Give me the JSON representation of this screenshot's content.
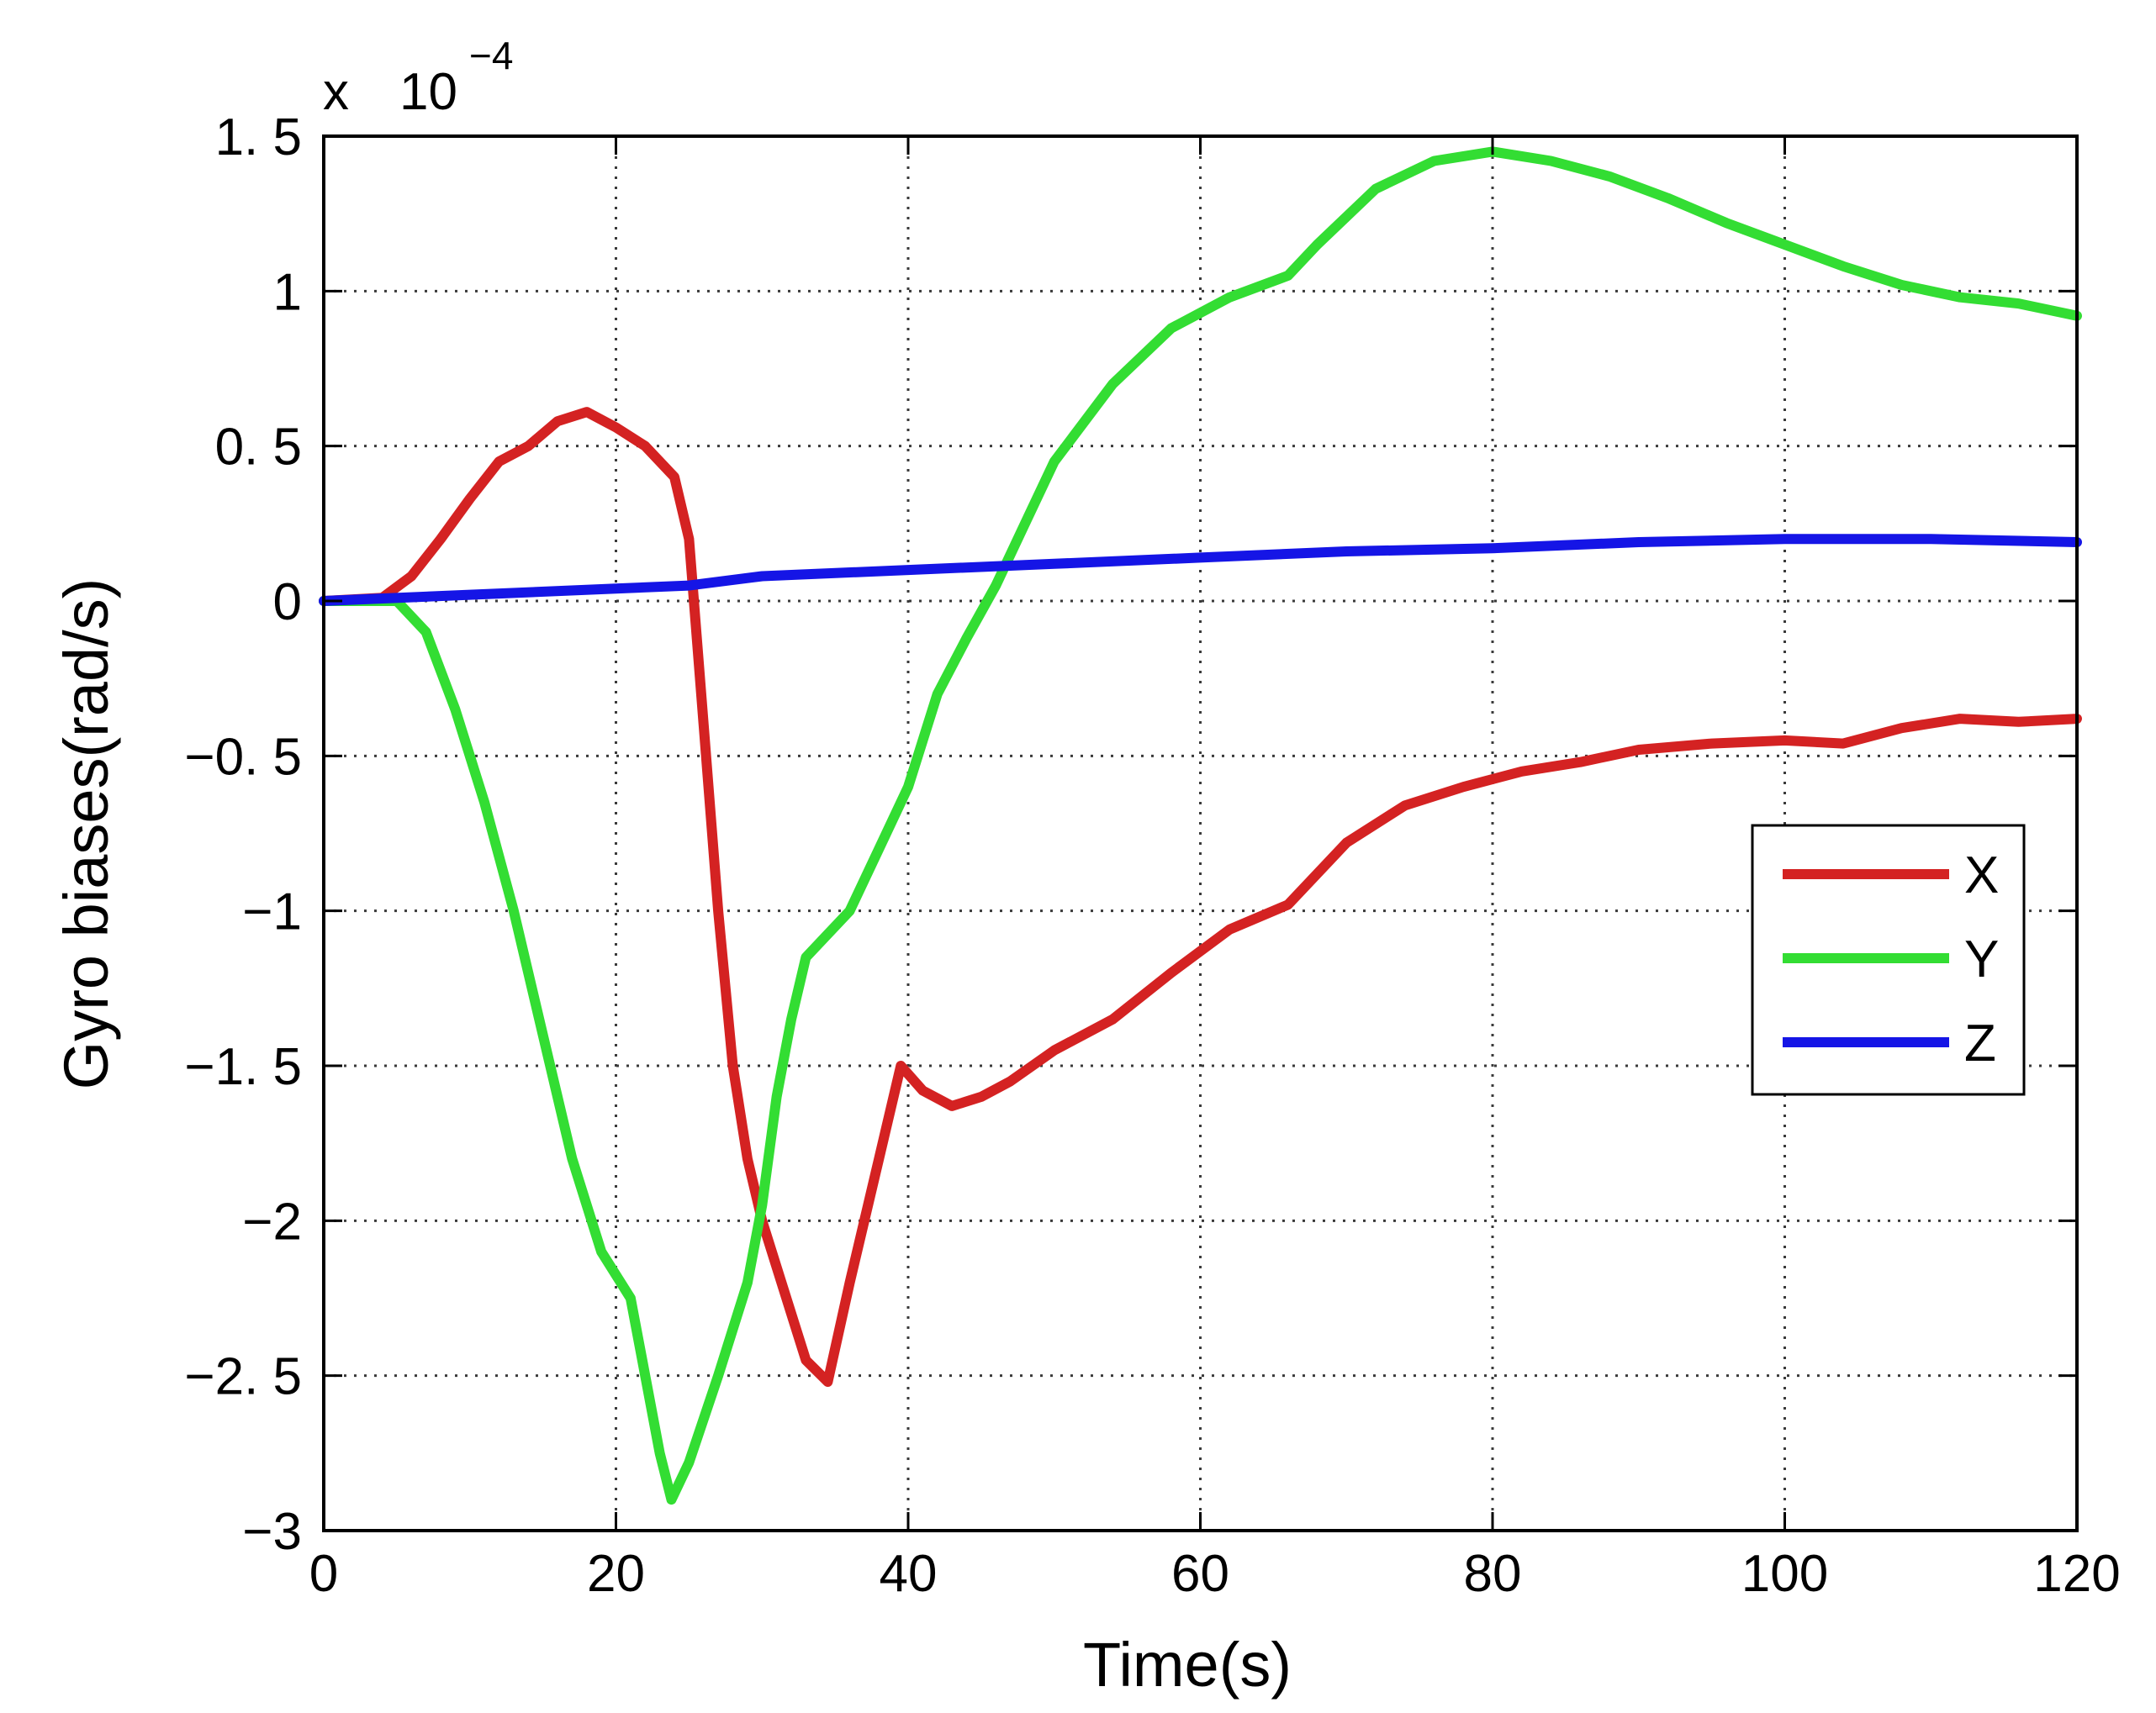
{
  "chart_data": {
    "type": "line",
    "title": "",
    "xlabel": "Time(s)",
    "ylabel": "Gyro biases(rad/s)",
    "y_scale_label": {
      "prefix": "x",
      "base": "10",
      "exponent": "−4"
    },
    "xlim": [
      0,
      120
    ],
    "ylim": [
      -3,
      1.5
    ],
    "xticks": [
      0,
      20,
      40,
      60,
      80,
      100,
      120
    ],
    "xtick_labels": [
      "0",
      "20",
      "40",
      "60",
      "80",
      "100",
      "120"
    ],
    "yticks": [
      1.5,
      1,
      0.5,
      0,
      -0.5,
      -1,
      -1.5,
      -2,
      -2.5,
      -3
    ],
    "ytick_labels": [
      "1. 5",
      "1",
      "0. 5",
      "0",
      "−0. 5",
      "−1",
      "−1. 5",
      "−2",
      "−2. 5",
      "−3"
    ],
    "grid": true,
    "legend_position": "right",
    "series": [
      {
        "name": "X",
        "color": "#d42222",
        "points": [
          [
            0,
            0
          ],
          [
            4,
            0.01
          ],
          [
            6,
            0.08
          ],
          [
            8,
            0.2
          ],
          [
            10,
            0.33
          ],
          [
            12,
            0.45
          ],
          [
            14,
            0.5
          ],
          [
            16,
            0.58
          ],
          [
            18,
            0.61
          ],
          [
            20,
            0.56
          ],
          [
            22,
            0.5
          ],
          [
            24,
            0.4
          ],
          [
            25,
            0.2
          ],
          [
            26,
            -0.4
          ],
          [
            27,
            -1.0
          ],
          [
            28,
            -1.5
          ],
          [
            29,
            -1.8
          ],
          [
            30,
            -2.0
          ],
          [
            31,
            -2.15
          ],
          [
            32,
            -2.3
          ],
          [
            33,
            -2.45
          ],
          [
            34.5,
            -2.52
          ],
          [
            36,
            -2.2
          ],
          [
            38,
            -1.8
          ],
          [
            39.5,
            -1.5
          ],
          [
            41,
            -1.58
          ],
          [
            43,
            -1.63
          ],
          [
            45,
            -1.6
          ],
          [
            47,
            -1.55
          ],
          [
            50,
            -1.45
          ],
          [
            54,
            -1.35
          ],
          [
            58,
            -1.2
          ],
          [
            62,
            -1.06
          ],
          [
            66,
            -0.98
          ],
          [
            70,
            -0.78
          ],
          [
            74,
            -0.66
          ],
          [
            78,
            -0.6
          ],
          [
            82,
            -0.55
          ],
          [
            86,
            -0.52
          ],
          [
            90,
            -0.48
          ],
          [
            95,
            -0.46
          ],
          [
            100,
            -0.45
          ],
          [
            104,
            -0.46
          ],
          [
            108,
            -0.41
          ],
          [
            112,
            -0.38
          ],
          [
            116,
            -0.39
          ],
          [
            120,
            -0.38
          ]
        ]
      },
      {
        "name": "Y",
        "color": "#33dd33",
        "points": [
          [
            0,
            0
          ],
          [
            5,
            0.0
          ],
          [
            7,
            -0.1
          ],
          [
            9,
            -0.35
          ],
          [
            11,
            -0.65
          ],
          [
            13,
            -1.0
          ],
          [
            15,
            -1.4
          ],
          [
            17,
            -1.8
          ],
          [
            19,
            -2.1
          ],
          [
            21,
            -2.25
          ],
          [
            22,
            -2.5
          ],
          [
            23,
            -2.75
          ],
          [
            23.8,
            -2.9
          ],
          [
            25,
            -2.78
          ],
          [
            27,
            -2.5
          ],
          [
            29,
            -2.2
          ],
          [
            30,
            -1.95
          ],
          [
            31,
            -1.6
          ],
          [
            32,
            -1.35
          ],
          [
            33,
            -1.15
          ],
          [
            34,
            -1.1
          ],
          [
            36,
            -1.0
          ],
          [
            38,
            -0.8
          ],
          [
            40,
            -0.6
          ],
          [
            42,
            -0.3
          ],
          [
            44,
            -0.12
          ],
          [
            46,
            0.05
          ],
          [
            48,
            0.25
          ],
          [
            50,
            0.45
          ],
          [
            54,
            0.7
          ],
          [
            58,
            0.88
          ],
          [
            62,
            0.98
          ],
          [
            66,
            1.05
          ],
          [
            68,
            1.15
          ],
          [
            72,
            1.33
          ],
          [
            76,
            1.42
          ],
          [
            80,
            1.45
          ],
          [
            84,
            1.42
          ],
          [
            88,
            1.37
          ],
          [
            92,
            1.3
          ],
          [
            96,
            1.22
          ],
          [
            100,
            1.15
          ],
          [
            104,
            1.08
          ],
          [
            108,
            1.02
          ],
          [
            112,
            0.98
          ],
          [
            116,
            0.96
          ],
          [
            120,
            0.92
          ]
        ]
      },
      {
        "name": "Z",
        "color": "#1515e6",
        "points": [
          [
            0,
            0
          ],
          [
            10,
            0.02
          ],
          [
            20,
            0.04
          ],
          [
            25,
            0.05
          ],
          [
            30,
            0.08
          ],
          [
            40,
            0.1
          ],
          [
            50,
            0.12
          ],
          [
            60,
            0.14
          ],
          [
            70,
            0.16
          ],
          [
            80,
            0.17
          ],
          [
            90,
            0.19
          ],
          [
            100,
            0.2
          ],
          [
            110,
            0.2
          ],
          [
            120,
            0.19
          ]
        ]
      }
    ]
  }
}
